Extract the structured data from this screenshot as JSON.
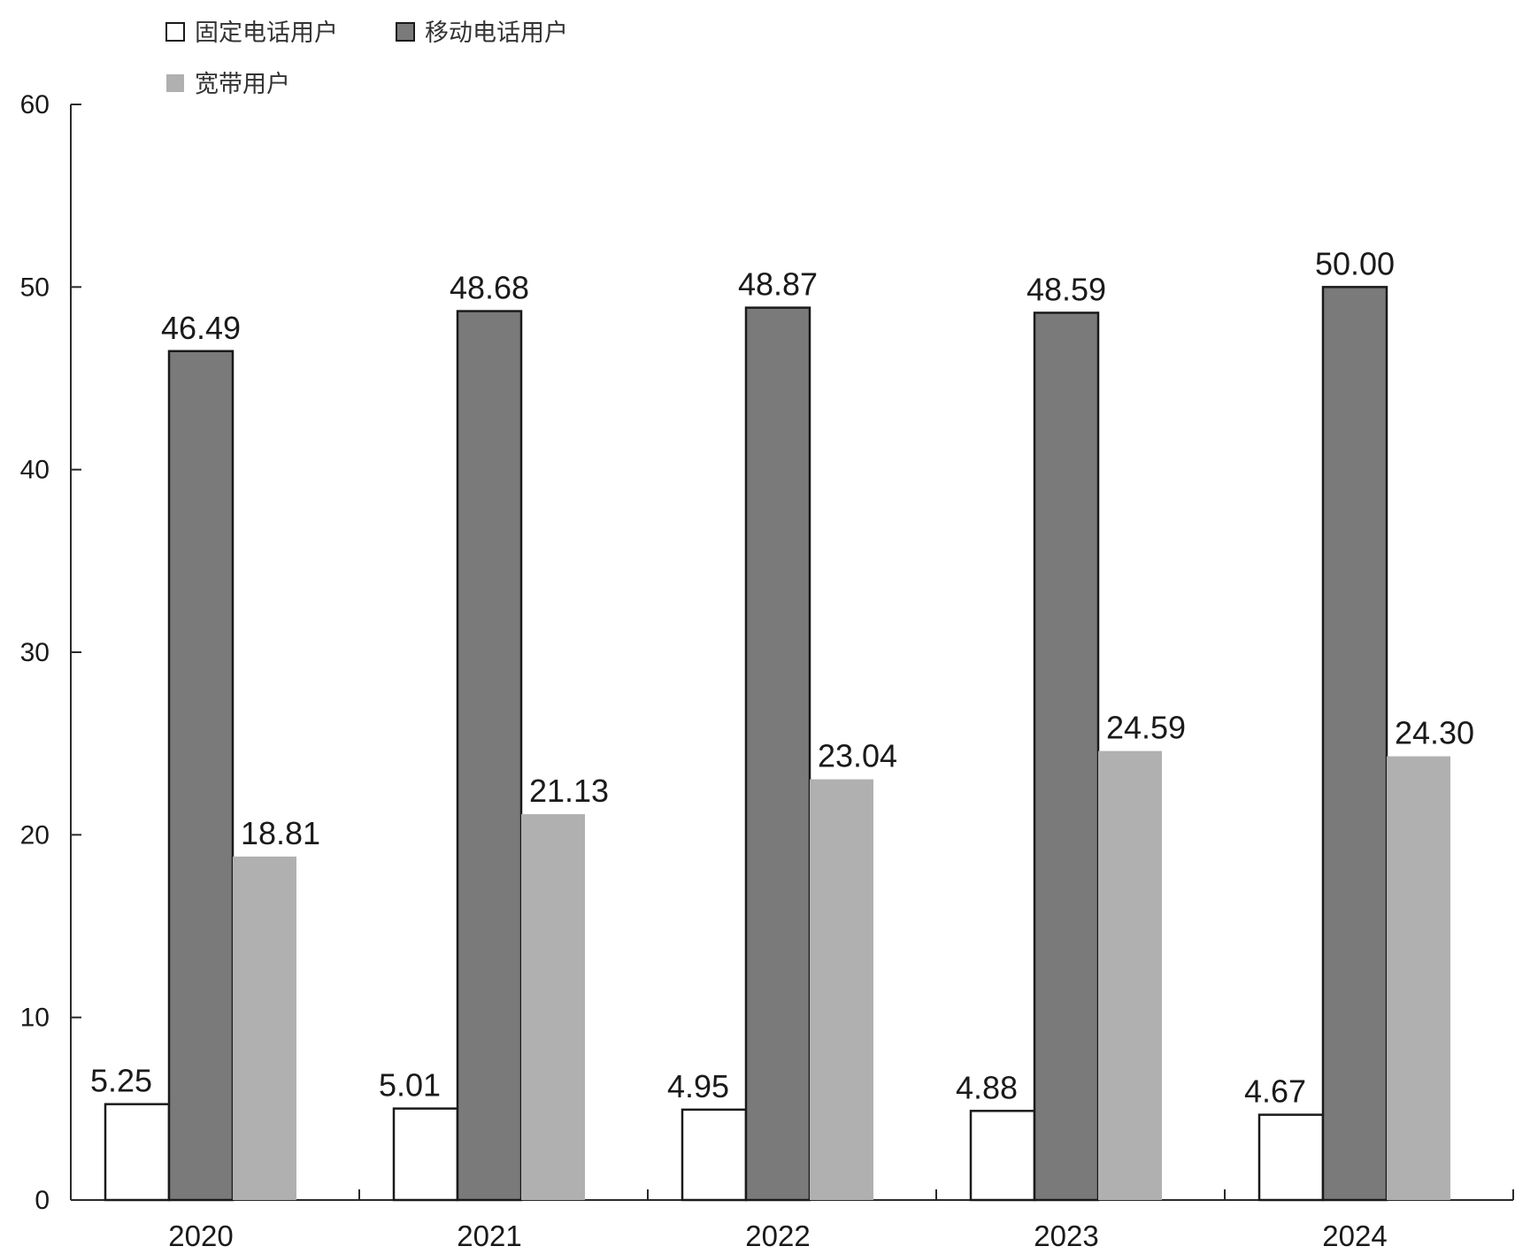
{
  "chart_data": {
    "type": "bar",
    "categories": [
      "2020",
      "2021",
      "2022",
      "2023",
      "2024"
    ],
    "series": [
      {
        "name": "固定电话用户",
        "values": [
          5.25,
          5.01,
          4.95,
          4.88,
          4.67
        ],
        "labels": [
          "5.25",
          "5.01",
          "4.95",
          "4.88",
          "4.67"
        ],
        "color": "#ffffff",
        "outline": true
      },
      {
        "name": "移动电话用户",
        "values": [
          46.49,
          48.68,
          48.87,
          48.59,
          50.0
        ],
        "labels": [
          "46.49",
          "48.68",
          "48.87",
          "48.59",
          "50.00"
        ],
        "color": "#7a7a7a",
        "outline": true
      },
      {
        "name": "宽带用户",
        "values": [
          18.81,
          21.13,
          23.04,
          24.59,
          24.3
        ],
        "labels": [
          "18.81",
          "21.13",
          "23.04",
          "24.59",
          "24.30"
        ],
        "color": "#b0b0b0",
        "outline": false
      }
    ],
    "y_ticks": [
      "0",
      "10",
      "20",
      "30",
      "40",
      "50",
      "60"
    ],
    "ylim": [
      0,
      60
    ],
    "grid": false,
    "legend_position": "top-left"
  }
}
